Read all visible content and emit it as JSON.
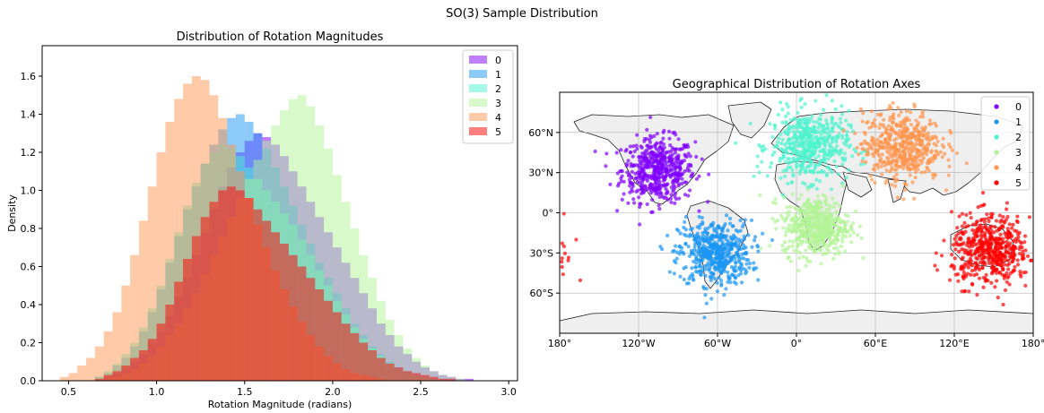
{
  "figure": {
    "suptitle": "SO(3) Sample Distribution"
  },
  "chart_data": [
    {
      "type": "bar",
      "subtype": "overlaid-histogram",
      "title": "Distribution of Rotation Magnitudes",
      "xlabel": "Rotation Magnitude (radians)",
      "ylabel": "Density",
      "xlim": [
        0.35,
        3.05
      ],
      "ylim": [
        0,
        1.76
      ],
      "xticks": [
        "0.5",
        "1.0",
        "1.5",
        "2.0",
        "2.5",
        "3.0"
      ],
      "yticks": [
        "0.0",
        "0.2",
        "0.4",
        "0.6",
        "0.8",
        "1.0",
        "1.2",
        "1.4",
        "1.6"
      ],
      "grid": false,
      "legend": "top-right",
      "bin_start": 0.45,
      "bin_width": 0.05,
      "series": [
        {
          "name": "0",
          "color": "#8000ff",
          "values": [
            0,
            0,
            0,
            0,
            0,
            0.02,
            0.04,
            0.06,
            0.1,
            0.14,
            0.2,
            0.26,
            0.34,
            0.44,
            0.54,
            0.66,
            0.78,
            0.9,
            1.02,
            1.12,
            1.2,
            1.26,
            1.3,
            1.28,
            1.24,
            1.18,
            1.1,
            1.02,
            0.94,
            0.86,
            0.78,
            0.7,
            0.62,
            0.54,
            0.46,
            0.38,
            0.3,
            0.24,
            0.18,
            0.14,
            0.1,
            0.07,
            0.05,
            0.03,
            0.02,
            0.01,
            0.01,
            0,
            0
          ]
        },
        {
          "name": "1",
          "color": "#1996f3",
          "values": [
            0,
            0,
            0,
            0,
            0.02,
            0.04,
            0.08,
            0.12,
            0.18,
            0.26,
            0.36,
            0.48,
            0.62,
            0.76,
            0.9,
            1.02,
            1.14,
            1.24,
            1.32,
            1.38,
            1.4,
            1.36,
            1.3,
            1.22,
            1.12,
            1.02,
            0.92,
            0.82,
            0.72,
            0.62,
            0.54,
            0.46,
            0.38,
            0.3,
            0.24,
            0.18,
            0.14,
            0.1,
            0.07,
            0.05,
            0.03,
            0.02,
            0.01,
            0,
            0,
            0,
            0,
            0,
            0
          ]
        },
        {
          "name": "2",
          "color": "#4df3ce",
          "values": [
            0,
            0,
            0,
            0,
            0.02,
            0.05,
            0.09,
            0.14,
            0.2,
            0.28,
            0.38,
            0.5,
            0.64,
            0.78,
            0.92,
            1.04,
            1.14,
            1.2,
            1.24,
            1.22,
            1.18,
            1.12,
            1.06,
            1.0,
            0.94,
            0.88,
            0.82,
            0.74,
            0.66,
            0.58,
            0.5,
            0.42,
            0.35,
            0.28,
            0.22,
            0.17,
            0.13,
            0.09,
            0.06,
            0.04,
            0.03,
            0.02,
            0.01,
            0,
            0,
            0,
            0,
            0,
            0
          ]
        },
        {
          "name": "3",
          "color": "#b2f396",
          "values": [
            0,
            0,
            0,
            0,
            0,
            0.01,
            0.02,
            0.04,
            0.06,
            0.09,
            0.13,
            0.18,
            0.24,
            0.3,
            0.38,
            0.46,
            0.56,
            0.66,
            0.76,
            0.86,
            0.96,
            1.06,
            1.16,
            1.26,
            1.34,
            1.42,
            1.48,
            1.5,
            1.44,
            1.34,
            1.22,
            1.08,
            0.94,
            0.8,
            0.66,
            0.54,
            0.42,
            0.32,
            0.24,
            0.17,
            0.12,
            0.08,
            0.05,
            0.03,
            0.02,
            0.01,
            0,
            0,
            0
          ]
        },
        {
          "name": "4",
          "color": "#ff964f",
          "values": [
            0.02,
            0.04,
            0.08,
            0.12,
            0.18,
            0.26,
            0.36,
            0.5,
            0.66,
            0.84,
            1.02,
            1.2,
            1.36,
            1.48,
            1.56,
            1.6,
            1.58,
            1.5,
            1.38,
            1.24,
            1.1,
            0.96,
            0.82,
            0.7,
            0.58,
            0.48,
            0.39,
            0.31,
            0.24,
            0.18,
            0.13,
            0.09,
            0.06,
            0.04,
            0.03,
            0.02,
            0.01,
            0,
            0,
            0,
            0,
            0,
            0,
            0,
            0,
            0,
            0,
            0,
            0
          ]
        },
        {
          "name": "5",
          "color": "#ff0000",
          "values": [
            0,
            0,
            0,
            0,
            0.01,
            0.03,
            0.05,
            0.08,
            0.12,
            0.16,
            0.22,
            0.3,
            0.4,
            0.52,
            0.64,
            0.76,
            0.86,
            0.94,
            1.0,
            1.02,
            1.0,
            0.96,
            0.9,
            0.84,
            0.78,
            0.72,
            0.66,
            0.6,
            0.54,
            0.48,
            0.42,
            0.36,
            0.3,
            0.25,
            0.2,
            0.16,
            0.12,
            0.09,
            0.07,
            0.05,
            0.04,
            0.03,
            0.02,
            0.01,
            0.01,
            0,
            0,
            0,
            0
          ]
        }
      ]
    },
    {
      "type": "scatter",
      "subtype": "map-scatter",
      "title": "Geographical Distribution of Rotation Axes",
      "xlim": [
        -180,
        180
      ],
      "ylim": [
        -90,
        90
      ],
      "xticks": [
        "180°",
        "120°W",
        "60°W",
        "0°",
        "60°E",
        "120°E",
        "180°"
      ],
      "yticks": [
        "60°N",
        "30°N",
        "0°",
        "30°S",
        "60°S"
      ],
      "grid": true,
      "legend": "top-right",
      "clusters": [
        {
          "name": "0",
          "color": "#8000ff",
          "center_lon": -105,
          "center_lat": 32,
          "spread": 12,
          "n": 520
        },
        {
          "name": "1",
          "color": "#1996f3",
          "center_lon": -62,
          "center_lat": -30,
          "spread": 12,
          "n": 520
        },
        {
          "name": "2",
          "color": "#4df3ce",
          "center_lon": 10,
          "center_lat": 50,
          "spread": 13,
          "n": 520
        },
        {
          "name": "3",
          "color": "#b2f396",
          "center_lon": 15,
          "center_lat": -10,
          "spread": 11,
          "n": 520
        },
        {
          "name": "4",
          "color": "#ff964f",
          "center_lon": 80,
          "center_lat": 50,
          "spread": 13,
          "n": 520
        },
        {
          "name": "5",
          "color": "#ff0000",
          "center_lon": 148,
          "center_lat": -28,
          "spread": 13,
          "n": 520
        }
      ]
    }
  ]
}
